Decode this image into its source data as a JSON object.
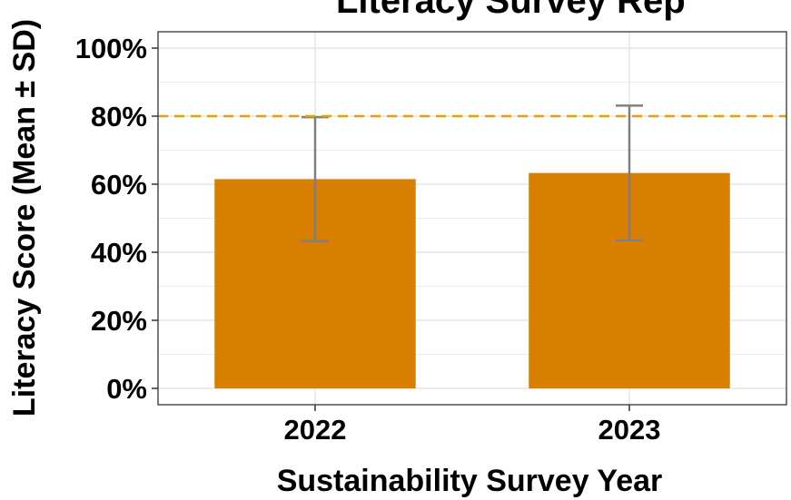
{
  "chart_data": {
    "type": "bar",
    "title": "Literacy Survey Rep",
    "xlabel": "Sustainability Survey Year",
    "ylabel": "Literacy Score (Mean ± SD)",
    "categories": [
      "2022",
      "2023"
    ],
    "values": [
      61.5,
      63.3
    ],
    "error_sd": [
      18.2,
      19.8
    ],
    "reference_line": {
      "value": 80,
      "style": "dashed",
      "color": "#E69F00"
    },
    "ylim": [
      0,
      105
    ],
    "yticks": [
      0,
      20,
      40,
      60,
      80,
      100
    ],
    "ytick_labels": [
      "0%",
      "20%",
      "40%",
      "60%",
      "80%",
      "100%"
    ],
    "grid": true,
    "colors": {
      "bar": "#D97F00",
      "error_bar": "#808080",
      "reference_line": "#E69F00",
      "grid": "#EBEBEB",
      "panel_border": "#333333"
    }
  }
}
